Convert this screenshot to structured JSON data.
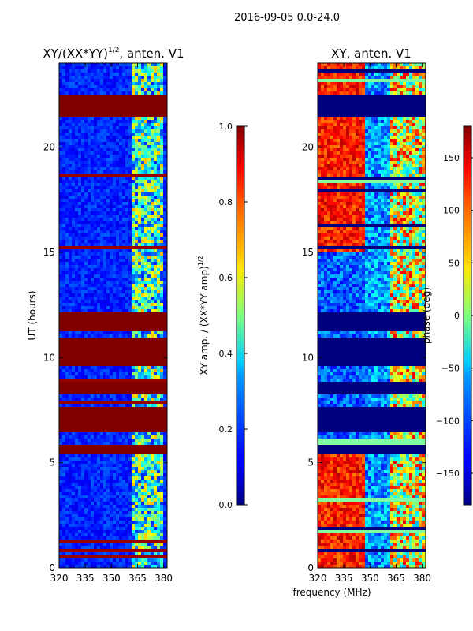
{
  "figure_title": "2016-09-05 0.0-24.0",
  "chart_data": [
    {
      "type": "heatmap",
      "title": "XY/(XX*YY)",
      "title_exponent": "1/2",
      "title_suffix": ", anten. V1",
      "xlabel": "",
      "ylabel": "UT (hours)",
      "xlim": [
        320,
        382
      ],
      "ylim": [
        0,
        24
      ],
      "xticks": [
        "320",
        "335",
        "350",
        "365",
        "380"
      ],
      "yticks": [
        "0",
        "5",
        "10",
        "15",
        "20"
      ],
      "colorbar": {
        "label": "XY amp. / (XX*YY amp)",
        "label_exponent": "1/2",
        "range": [
          0.0,
          1.0
        ],
        "ticks": [
          "0.0",
          "0.2",
          "0.4",
          "0.6",
          "0.8",
          "1.0"
        ]
      },
      "saturated_blocks_hours": [
        [
          21.5,
          22.5
        ],
        [
          11.2,
          12.2
        ],
        [
          9.6,
          10.9
        ],
        [
          8.2,
          8.8
        ],
        [
          6.4,
          7.6
        ],
        [
          5.4,
          5.9
        ]
      ]
    },
    {
      "type": "heatmap",
      "title": "XY, anten. V1",
      "xlabel": "frequency (MHz)",
      "ylabel": "",
      "xlim": [
        320,
        382
      ],
      "ylim": [
        0,
        24
      ],
      "xticks": [
        "320",
        "335",
        "350",
        "365",
        "380"
      ],
      "yticks": [
        "0",
        "5",
        "10",
        "15",
        "20"
      ],
      "colorbar": {
        "label": "phase (deg)",
        "range": [
          -180,
          180
        ],
        "ticks": [
          "-150",
          "-100",
          "-50",
          "0",
          "50",
          "100",
          "150"
        ]
      },
      "flagged_blocks_hours": [
        [
          21.5,
          22.5
        ],
        [
          11.2,
          12.2
        ],
        [
          9.6,
          10.9
        ],
        [
          8.2,
          8.8
        ],
        [
          6.4,
          7.6
        ],
        [
          5.4,
          5.9
        ]
      ]
    }
  ]
}
